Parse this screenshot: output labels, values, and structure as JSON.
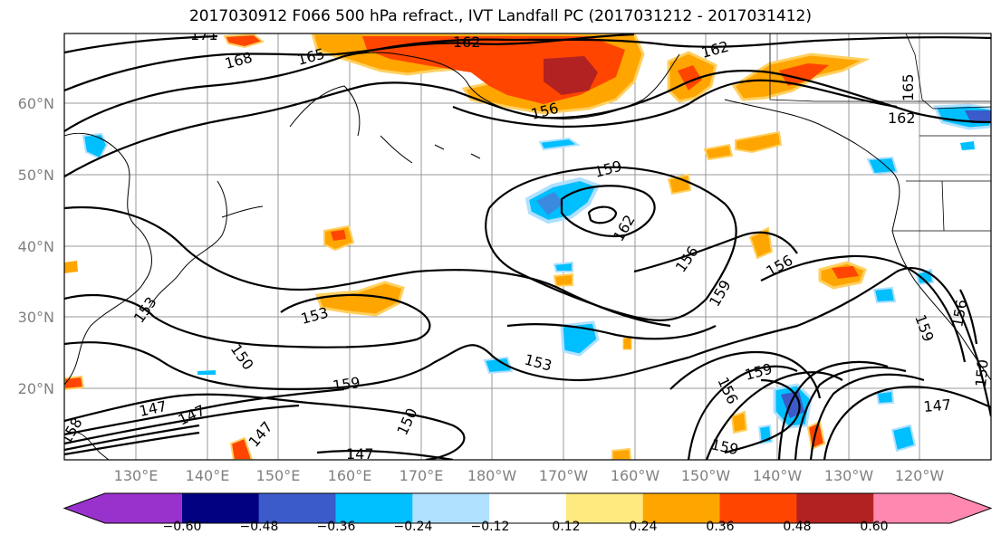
{
  "title": "2017030912 F066 500 hPa refract., IVT Landfall PC (2017031212 - 2017031412)",
  "lat_labels": [
    "60°N",
    "50°N",
    "40°N",
    "30°N",
    "20°N"
  ],
  "lon_labels": [
    "130°E",
    "140°E",
    "150°E",
    "160°E",
    "170°E",
    "180°W",
    "170°W",
    "160°W",
    "150°W",
    "140°W",
    "130°W",
    "120°W"
  ],
  "colorbar": {
    "colors": [
      "#9932cc",
      "#000080",
      "#3a5bc9",
      "#00bfff",
      "#b0e0ff",
      "#ffffff",
      "#ffea80",
      "#ffa500",
      "#ff4500",
      "#b22222",
      "#ff88b0"
    ],
    "ticks": [
      "−0.60",
      "−0.48",
      "−0.36",
      "−0.24",
      "−0.12",
      "0.12",
      "0.24",
      "0.36",
      "0.48",
      "0.60"
    ]
  },
  "contour_labels": [
    "171",
    "168",
    "165",
    "162",
    "162",
    "156",
    "162",
    "165",
    "159",
    "162",
    "156",
    "159",
    "156",
    "153",
    "153",
    "150",
    "159",
    "153",
    "150",
    "147",
    "147",
    "147",
    "159",
    "159",
    "147",
    "156",
    "150",
    "147",
    "159",
    "156",
    "158"
  ]
}
